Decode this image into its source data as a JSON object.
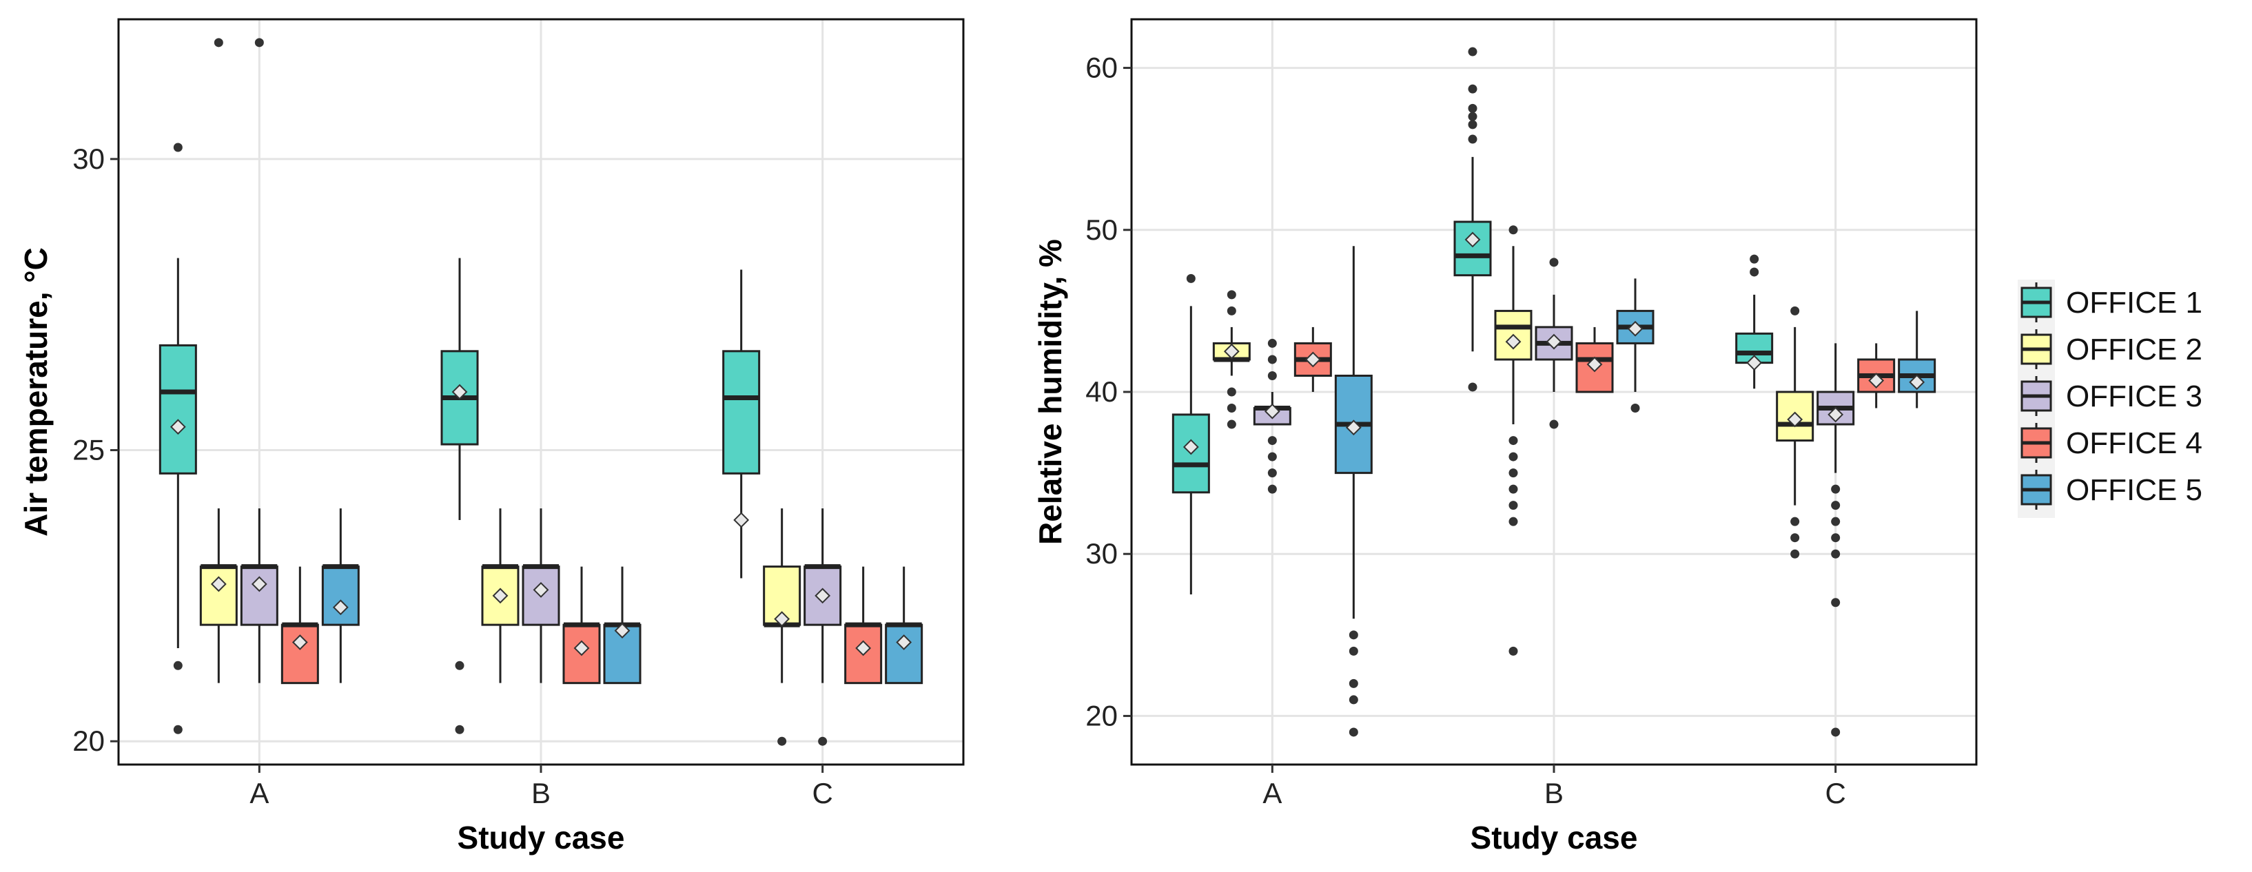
{
  "colors": {
    "OFFICE 1": "#56D3C4",
    "OFFICE 2": "#FFFFAA",
    "OFFICE 3": "#C4BCDB",
    "OFFICE 4": "#F97F72",
    "OFFICE 5": "#5BADD5",
    "grid": "#E4E4E4",
    "outlier": "#333333",
    "mean_marker": "#E8E8E8"
  },
  "legend": {
    "items": [
      "OFFICE 1",
      "OFFICE 2",
      "OFFICE 3",
      "OFFICE 4",
      "OFFICE 5"
    ],
    "position": "right"
  },
  "chart_data": [
    {
      "type": "boxplot",
      "id": "temperature",
      "title": "",
      "xlabel": "Study case",
      "ylabel": "Air temperature, °C",
      "categories": [
        "A",
        "B",
        "C"
      ],
      "ylim": [
        19.6,
        32.4
      ],
      "yticks": [
        20,
        25,
        30
      ],
      "grid": true,
      "series": [
        {
          "name": "OFFICE 1",
          "boxes": [
            {
              "q1": 24.6,
              "median": 26.0,
              "q3": 26.8,
              "whisker_low": 21.6,
              "whisker_high": 28.3,
              "mean": 25.4,
              "outliers": [
                30.2,
                21.3,
                20.2
              ]
            },
            {
              "q1": 25.1,
              "median": 25.9,
              "q3": 26.7,
              "whisker_low": 23.8,
              "whisker_high": 28.3,
              "mean": 26.0,
              "outliers": [
                21.3,
                20.2
              ]
            },
            {
              "q1": 24.6,
              "median": 25.9,
              "q3": 26.7,
              "whisker_low": 22.8,
              "whisker_high": 28.1,
              "mean": 23.8,
              "outliers": []
            }
          ]
        },
        {
          "name": "OFFICE 2",
          "boxes": [
            {
              "q1": 22.0,
              "median": 23.0,
              "q3": 23.0,
              "whisker_low": 21.0,
              "whisker_high": 24.0,
              "mean": 22.7,
              "outliers": [
                32.0
              ]
            },
            {
              "q1": 22.0,
              "median": 23.0,
              "q3": 23.0,
              "whisker_low": 21.0,
              "whisker_high": 24.0,
              "mean": 22.5,
              "outliers": []
            },
            {
              "q1": 22.0,
              "median": 22.0,
              "q3": 23.0,
              "whisker_low": 21.0,
              "whisker_high": 24.0,
              "mean": 22.1,
              "outliers": [
                20.0
              ]
            }
          ]
        },
        {
          "name": "OFFICE 3",
          "boxes": [
            {
              "q1": 22.0,
              "median": 23.0,
              "q3": 23.0,
              "whisker_low": 21.0,
              "whisker_high": 24.0,
              "mean": 22.7,
              "outliers": [
                32.0
              ]
            },
            {
              "q1": 22.0,
              "median": 23.0,
              "q3": 23.0,
              "whisker_low": 21.0,
              "whisker_high": 24.0,
              "mean": 22.6,
              "outliers": []
            },
            {
              "q1": 22.0,
              "median": 23.0,
              "q3": 23.0,
              "whisker_low": 21.0,
              "whisker_high": 24.0,
              "mean": 22.5,
              "outliers": [
                20.0
              ]
            }
          ]
        },
        {
          "name": "OFFICE 4",
          "boxes": [
            {
              "q1": 21.0,
              "median": 22.0,
              "q3": 22.0,
              "whisker_low": 21.0,
              "whisker_high": 23.0,
              "mean": 21.7,
              "outliers": []
            },
            {
              "q1": 21.0,
              "median": 22.0,
              "q3": 22.0,
              "whisker_low": 21.0,
              "whisker_high": 23.0,
              "mean": 21.6,
              "outliers": []
            },
            {
              "q1": 21.0,
              "median": 22.0,
              "q3": 22.0,
              "whisker_low": 21.0,
              "whisker_high": 23.0,
              "mean": 21.6,
              "outliers": []
            }
          ]
        },
        {
          "name": "OFFICE 5",
          "boxes": [
            {
              "q1": 22.0,
              "median": 23.0,
              "q3": 23.0,
              "whisker_low": 21.0,
              "whisker_high": 24.0,
              "mean": 22.3,
              "outliers": []
            },
            {
              "q1": 21.0,
              "median": 22.0,
              "q3": 22.0,
              "whisker_low": 21.0,
              "whisker_high": 23.0,
              "mean": 21.9,
              "outliers": []
            },
            {
              "q1": 21.0,
              "median": 22.0,
              "q3": 22.0,
              "whisker_low": 21.0,
              "whisker_high": 23.0,
              "mean": 21.7,
              "outliers": []
            }
          ]
        }
      ]
    },
    {
      "type": "boxplot",
      "id": "humidity",
      "title": "",
      "xlabel": "Study case",
      "ylabel": "Relative humidity, %",
      "categories": [
        "A",
        "B",
        "C"
      ],
      "ylim": [
        17.0,
        63.0
      ],
      "yticks": [
        20,
        30,
        40,
        50,
        60
      ],
      "grid": true,
      "series": [
        {
          "name": "OFFICE 1",
          "boxes": [
            {
              "q1": 33.8,
              "median": 35.5,
              "q3": 38.6,
              "whisker_low": 27.5,
              "whisker_high": 45.3,
              "mean": 36.6,
              "outliers": [
                47.0
              ]
            },
            {
              "q1": 47.2,
              "median": 48.4,
              "q3": 50.5,
              "whisker_low": 42.5,
              "whisker_high": 54.5,
              "mean": 49.4,
              "outliers": [
                61.0,
                58.7,
                57.5,
                57.0,
                56.5,
                55.6,
                40.3
              ]
            },
            {
              "q1": 41.8,
              "median": 42.4,
              "q3": 43.6,
              "whisker_low": 40.2,
              "whisker_high": 46.0,
              "mean": 41.8,
              "outliers": [
                48.2,
                47.4
              ]
            }
          ]
        },
        {
          "name": "OFFICE 2",
          "boxes": [
            {
              "q1": 42.0,
              "median": 42.0,
              "q3": 43.0,
              "whisker_low": 41.0,
              "whisker_high": 44.0,
              "mean": 42.5,
              "outliers": [
                46.0,
                45.0,
                40.0,
                39.0,
                38.0
              ]
            },
            {
              "q1": 42.0,
              "median": 44.0,
              "q3": 45.0,
              "whisker_low": 38.0,
              "whisker_high": 49.0,
              "mean": 43.1,
              "outliers": [
                50.0,
                37.0,
                36.0,
                35.0,
                34.0,
                33.0,
                32.0,
                24.0
              ]
            },
            {
              "q1": 37.0,
              "median": 38.0,
              "q3": 40.0,
              "whisker_low": 33.0,
              "whisker_high": 44.0,
              "mean": 38.3,
              "outliers": [
                45.0,
                32.0,
                31.0,
                30.0
              ]
            }
          ]
        },
        {
          "name": "OFFICE 3",
          "boxes": [
            {
              "q1": 38.0,
              "median": 39.0,
              "q3": 39.0,
              "whisker_low": 38.0,
              "whisker_high": 40.0,
              "mean": 38.8,
              "outliers": [
                43.0,
                42.0,
                41.0,
                37.0,
                36.0,
                35.0,
                34.0
              ]
            },
            {
              "q1": 42.0,
              "median": 43.0,
              "q3": 44.0,
              "whisker_low": 40.0,
              "whisker_high": 46.0,
              "mean": 43.1,
              "outliers": [
                48.0,
                38.0
              ]
            },
            {
              "q1": 38.0,
              "median": 39.0,
              "q3": 40.0,
              "whisker_low": 35.0,
              "whisker_high": 43.0,
              "mean": 38.6,
              "outliers": [
                34.0,
                33.0,
                32.0,
                31.0,
                30.0,
                27.0,
                19.0
              ]
            }
          ]
        },
        {
          "name": "OFFICE 4",
          "boxes": [
            {
              "q1": 41.0,
              "median": 42.0,
              "q3": 43.0,
              "whisker_low": 40.0,
              "whisker_high": 44.0,
              "mean": 42.0,
              "outliers": []
            },
            {
              "q1": 40.0,
              "median": 42.0,
              "q3": 43.0,
              "whisker_low": 40.0,
              "whisker_high": 44.0,
              "mean": 41.7,
              "outliers": []
            },
            {
              "q1": 40.0,
              "median": 41.0,
              "q3": 42.0,
              "whisker_low": 39.0,
              "whisker_high": 43.0,
              "mean": 40.7,
              "outliers": []
            }
          ]
        },
        {
          "name": "OFFICE 5",
          "boxes": [
            {
              "q1": 35.0,
              "median": 38.0,
              "q3": 41.0,
              "whisker_low": 26.0,
              "whisker_high": 49.0,
              "mean": 37.8,
              "outliers": [
                25.0,
                24.0,
                22.0,
                21.0,
                19.0
              ]
            },
            {
              "q1": 43.0,
              "median": 44.0,
              "q3": 45.0,
              "whisker_low": 40.0,
              "whisker_high": 47.0,
              "mean": 43.9,
              "outliers": [
                39.0
              ]
            },
            {
              "q1": 40.0,
              "median": 41.0,
              "q3": 42.0,
              "whisker_low": 39.0,
              "whisker_high": 45.0,
              "mean": 40.6,
              "outliers": []
            }
          ]
        }
      ]
    }
  ]
}
